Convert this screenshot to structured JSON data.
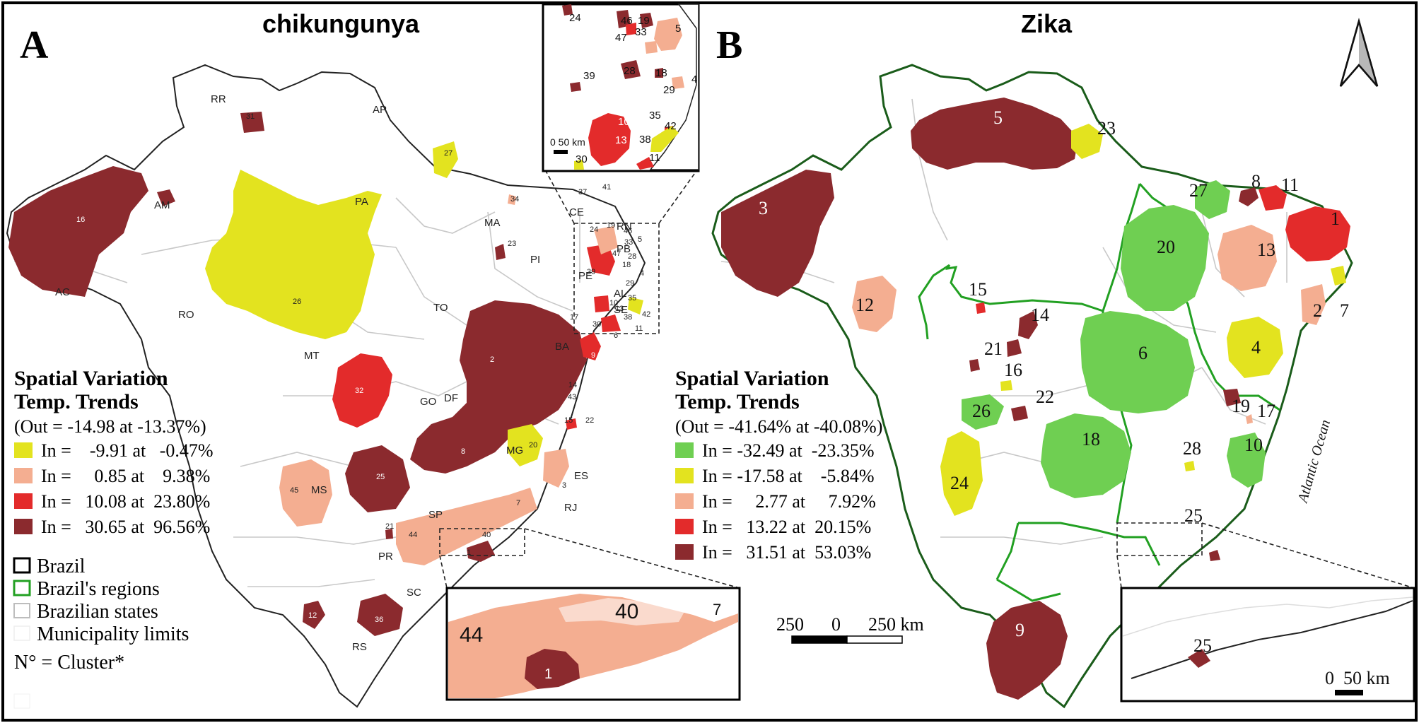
{
  "panel_a": {
    "letter": "A",
    "title": "chikungunya",
    "legend": {
      "title_line1": "Spatial Variation",
      "title_line2": "Temp. Trends",
      "out_text": "(Out = -14.98 at -13.37%)",
      "entries": [
        {
          "text": "In =    -9.91 at   -0.47%",
          "color": "#e3e31f"
        },
        {
          "text": "In =     0.85 at    9.38%",
          "color": "#f4ae91"
        },
        {
          "text": "In =   10.08 at  23.80%",
          "color": "#e32b2b"
        },
        {
          "text": "In =   30.65 at  96.56%",
          "color": "#8b2a2e"
        }
      ],
      "boundaries": [
        {
          "text": "Brazil",
          "stroke": "#000000"
        },
        {
          "text": "Brazil's regions",
          "stroke": "#22a022"
        },
        {
          "text": "Brazilian states",
          "stroke": "#bdbdbd"
        },
        {
          "text": "Municipality limits",
          "stroke": "#eeeeee"
        }
      ],
      "footnote": "N° = Cluster*"
    },
    "state_labels": [
      "RR",
      "AP",
      "AM",
      "PA",
      "MA",
      "CE",
      "RN",
      "PB",
      "PI",
      "PE",
      "AL",
      "SE",
      "AC",
      "RO",
      "TO",
      "BA",
      "MT",
      "GO",
      "DF",
      "MG",
      "MS",
      "ES",
      "RJ",
      "SP",
      "PR",
      "SC",
      "RS"
    ],
    "cluster_labels": [
      "31",
      "27",
      "16",
      "34",
      "37",
      "41",
      "23",
      "24",
      "19",
      "46",
      "33",
      "5",
      "47",
      "28",
      "18",
      "39",
      "29",
      "4",
      "10",
      "35",
      "13",
      "42",
      "11",
      "38",
      "17",
      "30",
      "6",
      "26",
      "2",
      "9",
      "14",
      "43",
      "32",
      "15",
      "22",
      "20",
      "8",
      "25",
      "3",
      "7",
      "45",
      "21",
      "44",
      "40",
      "1",
      "12",
      "36"
    ],
    "inset_top_labels": [
      "24",
      "46",
      "19",
      "33",
      "5",
      "47",
      "28",
      "18",
      "39",
      "29",
      "4",
      "35",
      "10",
      "42",
      "13",
      "38",
      "30",
      "6",
      "11"
    ],
    "inset_top_scale": "0 50 km",
    "inset_bottom_labels": [
      "44",
      "40",
      "7",
      "1"
    ]
  },
  "panel_b": {
    "letter": "B",
    "title": "Zika",
    "legend": {
      "title_line1": "Spatial Variation",
      "title_line2": "Temp. Trends",
      "out_text": "(Out = -41.64% at -40.08%)",
      "entries": [
        {
          "text": "In = -32.49 at  -23.35%",
          "color": "#6fcf52"
        },
        {
          "text": "In = -17.58 at    -5.84%",
          "color": "#e3e31f"
        },
        {
          "text": "In =     2.77 at     7.92%",
          "color": "#f4ae91"
        },
        {
          "text": "In =   13.22 at  20.15%",
          "color": "#e32b2b"
        },
        {
          "text": "In =   31.51 at  53.03%",
          "color": "#8b2a2e"
        }
      ]
    },
    "cluster_labels": [
      "5",
      "23",
      "3",
      "27",
      "8",
      "11",
      "1",
      "20",
      "13",
      "12",
      "15",
      "14",
      "21",
      "16",
      "6",
      "2",
      "7",
      "4",
      "22",
      "26",
      "18",
      "19",
      "17",
      "10",
      "28",
      "24",
      "25",
      "9"
    ],
    "inset_labels": [
      "25"
    ],
    "inset_scale": "0  50 km",
    "ocean_label": "Atlantic Ocean",
    "scalebar": "250      0      250 km"
  },
  "colors": {
    "dark_red": "#8b2a2e",
    "red": "#e32b2b",
    "salmon": "#f4ae91",
    "yellow": "#e3e31f",
    "green": "#6fcf52",
    "region_line": "#22a022",
    "state_line": "#c8c8c8"
  },
  "icons": [
    "north-arrow-icon"
  ]
}
